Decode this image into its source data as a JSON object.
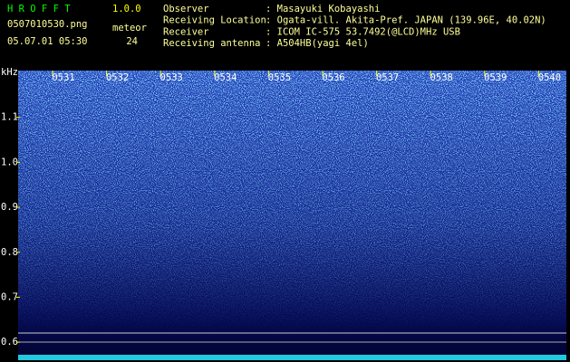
{
  "chart_data": {
    "type": "spectrogram",
    "app_name": "H R O F F T",
    "version": "1.0.0",
    "filename": "0507010530.png",
    "datetime": "05.07.01 05:30",
    "meteor_label": "meteor",
    "meteor_count": 24,
    "info": [
      {
        "label": "Observer",
        "value": ": Masayuki Kobayashi"
      },
      {
        "label": "Receiving Location",
        "value": ": Ogata-vill. Akita-Pref. JAPAN (139.96E, 40.02N)"
      },
      {
        "label": "Receiver",
        "value": ": ICOM IC-575 53.7492(@LCD)MHz USB"
      },
      {
        "label": "Receiving antenna",
        "value": ": A504HB(yagi 4el)"
      }
    ],
    "y_unit": "kHz",
    "categories": [
      "0531",
      "0532",
      "0533",
      "0534",
      "0535",
      "0536",
      "0537",
      "0538",
      "0539",
      "0540"
    ],
    "ylim": [
      0.56,
      1.2
    ],
    "yticks": [
      0.6,
      0.7,
      0.8,
      0.9,
      {
        "value": 1,
        "label": "1.0"
      },
      1.1
    ]
  }
}
